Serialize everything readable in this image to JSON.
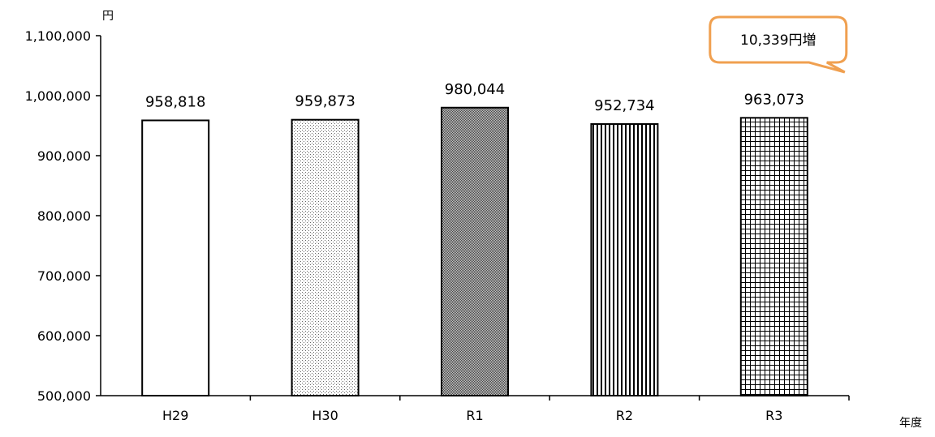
{
  "chart_data": {
    "type": "bar",
    "categories": [
      "H29",
      "H30",
      "R1",
      "R2",
      "R3"
    ],
    "values": [
      958818,
      959873,
      980044,
      952734,
      963073
    ],
    "data_labels": [
      "958,818",
      "959,873",
      "980,044",
      "952,734",
      "963,073"
    ],
    "ylim": [
      500000,
      1100000
    ],
    "y_ticks": [
      500000,
      600000,
      700000,
      800000,
      900000,
      1000000,
      1100000
    ],
    "y_tick_labels": [
      "500,000",
      "600,000",
      "700,000",
      "800,000",
      "900,000",
      "1,000,000",
      "1,100,000"
    ],
    "ylabel": "円",
    "xlabel": "年度",
    "grid": false,
    "bar_patterns": [
      "none",
      "fine-dots",
      "dense-checker",
      "vertical-lines",
      "grid"
    ],
    "annotation": {
      "text": "10,339円増",
      "category": "R3",
      "border_color": "#f0a050"
    }
  }
}
